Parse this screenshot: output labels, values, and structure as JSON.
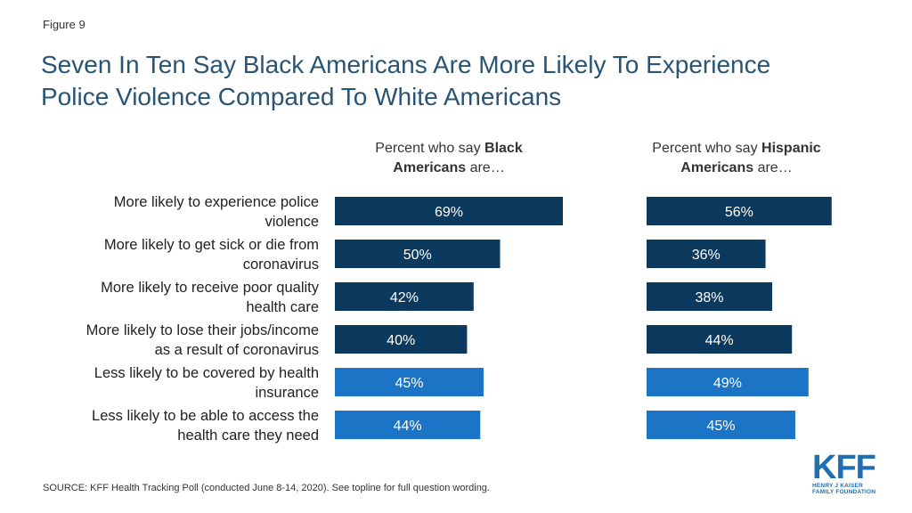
{
  "figure_label": "Figure 9",
  "title_lines": [
    "Seven In Ten Say Black Americans Are More Likely To Experience",
    "Police Violence Compared To White Americans"
  ],
  "source": "SOURCE: KFF Health Tracking Poll (conducted June 8-14, 2020). See topline for full question wording.",
  "logo": {
    "mark": "KFF",
    "sub_lines": [
      "HENRY J KAISER",
      "FAMILY FOUNDATION"
    ]
  },
  "colors": {
    "dark_bar": "#0b3a5e",
    "light_bar": "#1b74c6",
    "title": "#2a5474",
    "logo": "#1f6fb2"
  },
  "chart_data": {
    "type": "bar",
    "orientation": "horizontal",
    "unit": "%",
    "categories": [
      [
        "More likely to experience police",
        "violence"
      ],
      [
        "More likely to get sick or die from",
        "coronavirus"
      ],
      [
        "More likely to receive poor quality",
        "health care"
      ],
      [
        "More likely to lose their jobs/income",
        "as a result of coronavirus"
      ],
      [
        "Less likely to be covered by health",
        "insurance"
      ],
      [
        "Less likely to be able to access the",
        "health care they need"
      ]
    ],
    "bar_color_groups": [
      "dark",
      "dark",
      "dark",
      "dark",
      "light",
      "light"
    ],
    "panels": [
      {
        "header_prefix": "Percent who say ",
        "header_bold": "Black",
        "header_line2_bold": "Americans",
        "header_line2_rest": " are…",
        "values": [
          69,
          50,
          42,
          40,
          45,
          44
        ]
      },
      {
        "header_prefix": "Percent who say ",
        "header_bold": "Hispanic",
        "header_line2_bold": "Americans",
        "header_line2_rest": " are…",
        "values": [
          56,
          36,
          38,
          44,
          49,
          45
        ]
      }
    ]
  }
}
